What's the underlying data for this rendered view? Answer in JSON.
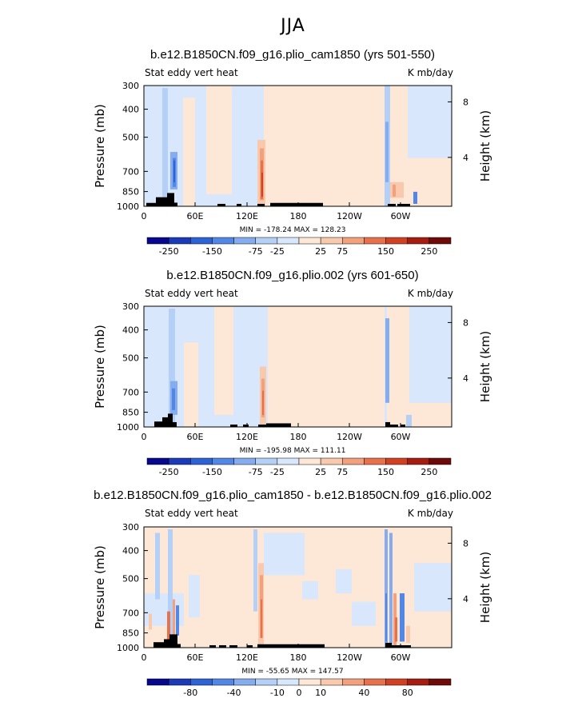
{
  "figure_title": "JJA",
  "colors": {
    "palette": [
      "#08088e",
      "#1c3bb8",
      "#2e63d6",
      "#5387e6",
      "#86acf0",
      "#b5d0f7",
      "#d8e7fb",
      "#fde7d6",
      "#f9c9ad",
      "#f3a07c",
      "#e8704b",
      "#d24022",
      "#a61c10",
      "#6e0a08"
    ],
    "terrain": "#000000"
  },
  "chart_data": [
    {
      "type": "heatmap",
      "title": "b.e12.B1850CN.f09_g16.plio_cam1850 (yrs 501-550)",
      "left_label": "Stat eddy vert heat",
      "right_label": "K mb/day",
      "ylabel": "Pressure (mb)",
      "y2label": "Height (km)",
      "xticks": [
        "0",
        "60E",
        "120E",
        "180",
        "120W",
        "60W"
      ],
      "yticks": [
        "300",
        "400",
        "500",
        "700",
        "850",
        "1000"
      ],
      "y2ticks": [
        "8",
        "4"
      ],
      "stats": "MIN = -178.24   MAX = 128.23",
      "colorbar_ticks": [
        "-250",
        "-150",
        "-75",
        "-25",
        "25",
        "75",
        "150",
        "250"
      ]
    },
    {
      "type": "heatmap",
      "title": "b.e12.B1850CN.f09_g16.plio.002 (yrs 601-650)",
      "left_label": "Stat eddy vert heat",
      "right_label": "K mb/day",
      "ylabel": "Pressure (mb)",
      "y2label": "Height (km)",
      "xticks": [
        "0",
        "60E",
        "120E",
        "180",
        "120W",
        "60W"
      ],
      "yticks": [
        "300",
        "400",
        "500",
        "700",
        "850",
        "1000"
      ],
      "y2ticks": [
        "8",
        "4"
      ],
      "stats": "MIN = -195.98   MAX = 111.11",
      "colorbar_ticks": [
        "-250",
        "-150",
        "-75",
        "-25",
        "25",
        "75",
        "150",
        "250"
      ]
    },
    {
      "type": "heatmap",
      "title": "b.e12.B1850CN.f09_g16.plio_cam1850 - b.e12.B1850CN.f09_g16.plio.002",
      "left_label": "Stat eddy vert heat",
      "right_label": "K mb/day",
      "ylabel": "Pressure (mb)",
      "y2label": "Height (km)",
      "xticks": [
        "0",
        "60E",
        "120E",
        "180",
        "120W",
        "60W"
      ],
      "yticks": [
        "300",
        "400",
        "500",
        "700",
        "850",
        "1000"
      ],
      "y2ticks": [
        "8",
        "4"
      ],
      "stats": "MIN = -55.65   MAX = 147.57",
      "colorbar_ticks": [
        "-80",
        "-40",
        "-10",
        "0",
        "10",
        "40",
        "80"
      ]
    }
  ]
}
